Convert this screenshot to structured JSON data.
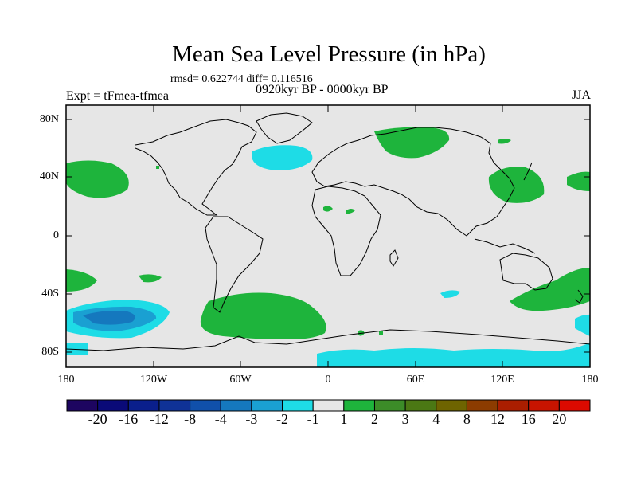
{
  "title": "Mean Sea Level Pressure (in hPa)",
  "stats": "rmsd= 0.622744 diff= 0.116516",
  "experiment": "Expt = tFmea-tfmea",
  "period": "0920kyr BP - 0000kyr BP",
  "season": "JJA",
  "lat_labels": [
    "80N",
    "40N",
    "0",
    "40S",
    "80S"
  ],
  "lon_labels": [
    "180",
    "120W",
    "60W",
    "0",
    "60E",
    "120E",
    "180"
  ],
  "colorbar": {
    "labels": [
      "-20",
      "-16",
      "-12",
      "-8",
      "-4",
      "-3",
      "-2",
      "-1",
      "1",
      "2",
      "3",
      "4",
      "8",
      "12",
      "16",
      "20"
    ],
    "colors": [
      "#1d0560",
      "#0a0a78",
      "#0a1f8c",
      "#0f3296",
      "#1050aa",
      "#1578be",
      "#1aa0d2",
      "#1edce6",
      "#e6e6e6",
      "#1eb43c",
      "#3c8c28",
      "#4b7814",
      "#6e6400",
      "#8c3c00",
      "#aa1e00",
      "#c81400",
      "#dc0a00"
    ]
  },
  "colors": {
    "background": "#e6e6e6",
    "positive": "#1eb43c",
    "negative_light": "#1edce6",
    "negative_medium": "#1aa0d2",
    "negative_strong": "#1578be"
  }
}
